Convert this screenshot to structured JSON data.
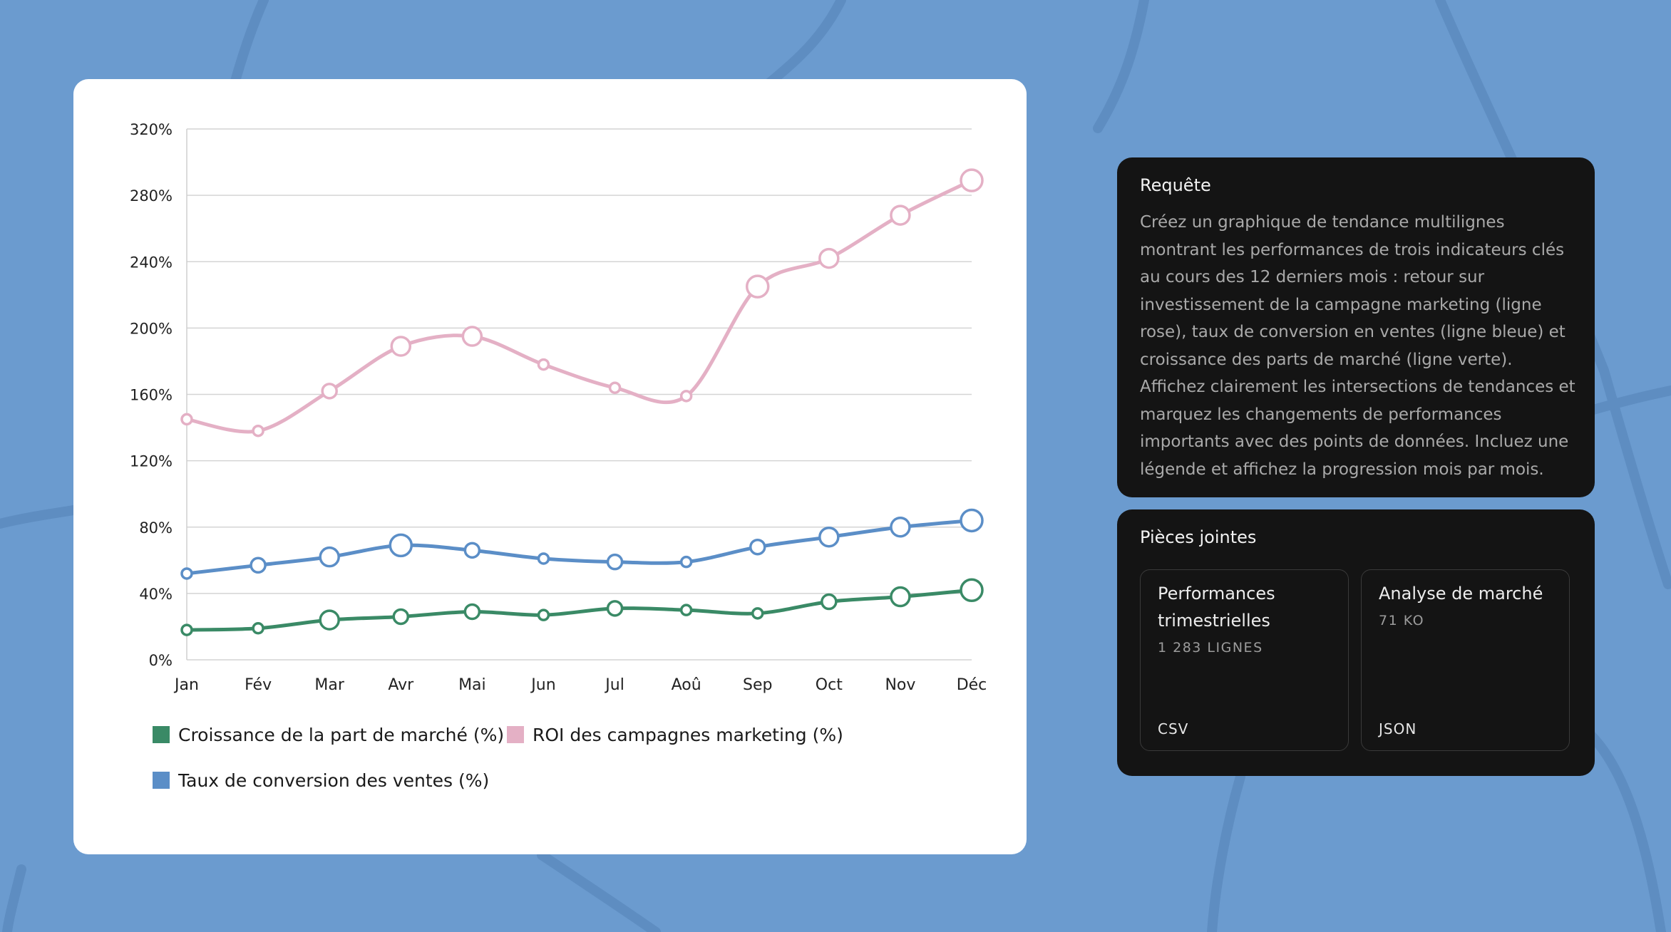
{
  "chart_data": {
    "type": "line",
    "categories": [
      "Jan",
      "Fév",
      "Mar",
      "Avr",
      "Mai",
      "Jun",
      "Jul",
      "Aoû",
      "Sep",
      "Oct",
      "Nov",
      "Déc"
    ],
    "ylim": [
      0,
      320
    ],
    "yticks": [
      0,
      40,
      80,
      120,
      160,
      200,
      240,
      280,
      320
    ],
    "ytick_labels": [
      "0%",
      "40%",
      "80%",
      "120%",
      "160%",
      "200%",
      "240%",
      "280%",
      "320%"
    ],
    "grid": true,
    "series": [
      {
        "name": "Croissance de la part de marché (%)",
        "color": "#3a8a66",
        "values": [
          18,
          19,
          24,
          26,
          29,
          27,
          31,
          30,
          28,
          35,
          38,
          42
        ],
        "marker_emphasis": [
          0,
          0,
          2,
          1,
          1,
          0,
          1,
          0,
          0,
          1,
          2,
          3
        ]
      },
      {
        "name": "ROI des campagnes marketing (%)",
        "color": "#e4b0c5",
        "values": [
          145,
          138,
          162,
          189,
          195,
          178,
          164,
          159,
          225,
          242,
          268,
          289
        ],
        "marker_emphasis": [
          0,
          0,
          1,
          2,
          2,
          0,
          0,
          0,
          3,
          2,
          2,
          3
        ]
      },
      {
        "name": "Taux de conversion des ventes (%)",
        "color": "#5b8ec7",
        "values": [
          52,
          57,
          62,
          69,
          66,
          61,
          59,
          59,
          68,
          74,
          80,
          84
        ],
        "marker_emphasis": [
          0,
          1,
          2,
          3,
          1,
          0,
          1,
          0,
          1,
          2,
          2,
          3
        ]
      }
    ]
  },
  "legend": {
    "market_share": "Croissance de la part de marché (%)",
    "roi": "ROI des campagnes marketing (%)",
    "conversion": "Taux de conversion des ventes (%)"
  },
  "colors": {
    "green": "#3a8a66",
    "pink": "#e4b0c5",
    "blue": "#5b8ec7",
    "background": "#6b9bcf",
    "panel": "#141414"
  },
  "query": {
    "title": "Requête",
    "text": "Créez un graphique de tendance multilignes montrant les performances de trois indicateurs clés au cours des 12 derniers mois : retour sur investissement de la campagne marketing (ligne rose), taux de conversion en ventes (ligne bleue) et croissance des parts de marché (ligne verte). Affichez clairement les intersections de tendances et marquez les changements de performances importants avec des points de données. Incluez une légende et affichez la progression mois par mois."
  },
  "attachments": {
    "title": "Pièces jointes",
    "files": [
      {
        "name": "Performances trimestrielles",
        "meta": "1 283 LIGNES",
        "type": "CSV"
      },
      {
        "name": "Analyse de marché",
        "meta": "71 KO",
        "type": "JSON"
      }
    ]
  }
}
